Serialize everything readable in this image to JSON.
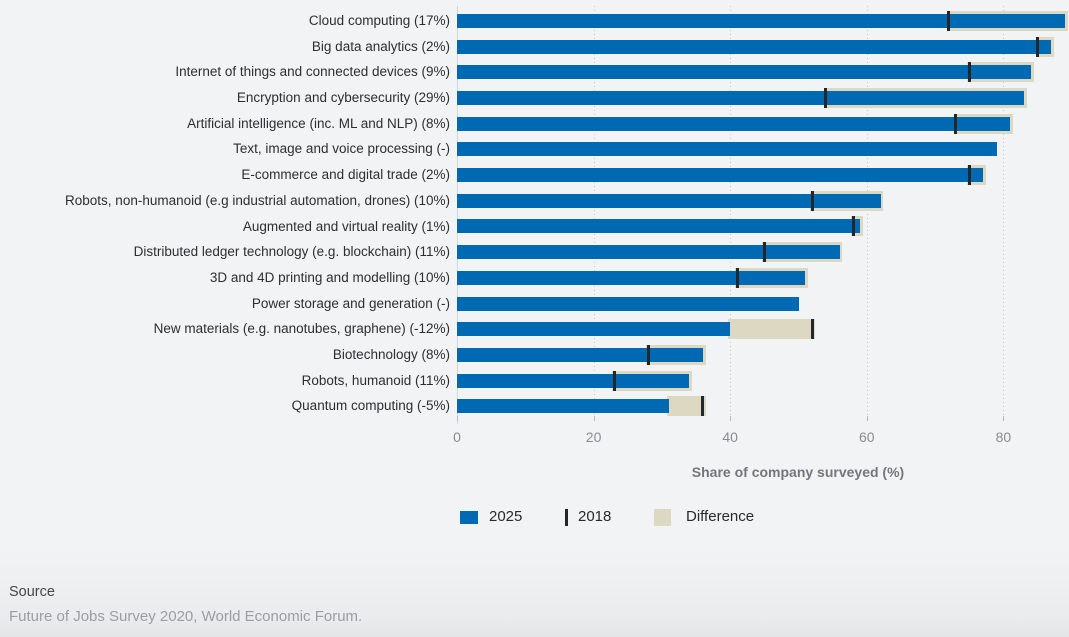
{
  "chart_data": {
    "type": "bar",
    "orientation": "horizontal",
    "xlabel": "Share of company surveyed (%)",
    "xlim": [
      0,
      89.6
    ],
    "xticks": [
      0,
      20,
      40,
      60,
      80
    ],
    "grid": "vertical-dotted",
    "legend_position": "bottom",
    "categories": [
      "Cloud computing (17%)",
      "Big data analytics (2%)",
      "Internet of things and connected devices (9%)",
      "Encryption and cybersecurity (29%)",
      "Artificial intelligence (inc. ML and NLP) (8%)",
      "Text, image and voice processing (-)",
      "E-commerce and digital trade (2%)",
      "Robots, non-humanoid (e.g industrial automation, drones) (10%)",
      "Augmented and virtual reality (1%)",
      "Distributed ledger technology (e.g. blockchain) (11%)",
      "3D and 4D printing and modelling (10%)",
      "Power storage and generation (-)",
      "New materials (e.g. nanotubes, graphene) (-12%)",
      "Biotechnology (8%)",
      "Robots, humanoid (11%)",
      "Quantum computing (-5%)"
    ],
    "series": [
      {
        "name": "2025",
        "values": [
          89,
          87,
          84,
          83,
          81,
          79,
          77,
          62,
          59,
          56,
          51,
          50,
          40,
          36,
          34,
          31
        ]
      },
      {
        "name": "2018",
        "values": [
          72,
          85,
          75,
          54,
          73,
          null,
          75,
          52,
          58,
          45,
          41,
          null,
          52,
          28,
          23,
          36
        ]
      },
      {
        "name": "Difference",
        "values": [
          17,
          2,
          9,
          29,
          8,
          null,
          2,
          10,
          1,
          11,
          10,
          null,
          -12,
          8,
          11,
          -5
        ]
      }
    ],
    "legend": [
      {
        "label": "2025",
        "swatch": "square",
        "color": "#0069b4"
      },
      {
        "label": "2018",
        "swatch": "vertical-line",
        "color": "#23262b"
      },
      {
        "label": "Difference",
        "swatch": "square",
        "color": "#ddd8c1"
      }
    ]
  },
  "axis": {
    "tick_labels": [
      "0",
      "20",
      "40",
      "60",
      "80"
    ]
  },
  "colors": {
    "bar_2025": "#0069b4",
    "marker_2018": "#23262b",
    "difference_band": "#ddd8c1",
    "background": "#f2f3f5"
  },
  "source": {
    "heading": "Source",
    "text": "Future of Jobs Survey 2020, World Economic Forum."
  }
}
